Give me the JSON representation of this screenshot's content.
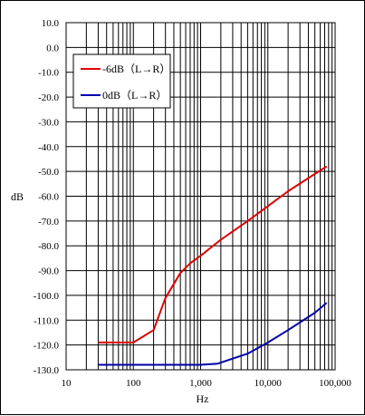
{
  "chart_data": {
    "type": "line",
    "title": "",
    "xlabel": "Hz",
    "ylabel": "dB",
    "x_scale": "log",
    "xlim": [
      10,
      100000
    ],
    "ylim": [
      -130,
      10
    ],
    "x_ticks": [
      10,
      100,
      1000,
      10000,
      100000
    ],
    "x_tick_labels": [
      "10",
      "100",
      "1,000",
      "10,000",
      "100,000"
    ],
    "y_ticks": [
      10,
      0,
      -10,
      -20,
      -30,
      -40,
      -50,
      -60,
      -70,
      -80,
      -90,
      -100,
      -110,
      -120,
      -130
    ],
    "y_tick_labels": [
      "10.0",
      "0.0",
      "-10.0",
      "-20.0",
      "-30.0",
      "-40.0",
      "-50.0",
      "-60.0",
      "-70.0",
      "-80.0",
      "-90.0",
      "-100.0",
      "-110.0",
      "-120.0",
      "-130.0"
    ],
    "grid": true,
    "legend_position": "top-left",
    "series": [
      {
        "name": "-6dB（L→R）",
        "color": "#dd0000",
        "points": [
          [
            30,
            -119
          ],
          [
            100,
            -119
          ],
          [
            200,
            -114
          ],
          [
            300,
            -101
          ],
          [
            500,
            -91
          ],
          [
            700,
            -87
          ],
          [
            1000,
            -84
          ],
          [
            2000,
            -77.5
          ],
          [
            5000,
            -70
          ],
          [
            10000,
            -64
          ],
          [
            20000,
            -58
          ],
          [
            50000,
            -51
          ],
          [
            75000,
            -48
          ]
        ]
      },
      {
        "name": "0dB（L→R）",
        "color": "#0000aa",
        "points": [
          [
            30,
            -128
          ],
          [
            100,
            -128
          ],
          [
            500,
            -128
          ],
          [
            1000,
            -128
          ],
          [
            1800,
            -127.5
          ],
          [
            3000,
            -125.5
          ],
          [
            5000,
            -123.5
          ],
          [
            10000,
            -119
          ],
          [
            20000,
            -114
          ],
          [
            50000,
            -107
          ],
          [
            75000,
            -103
          ]
        ]
      }
    ]
  }
}
